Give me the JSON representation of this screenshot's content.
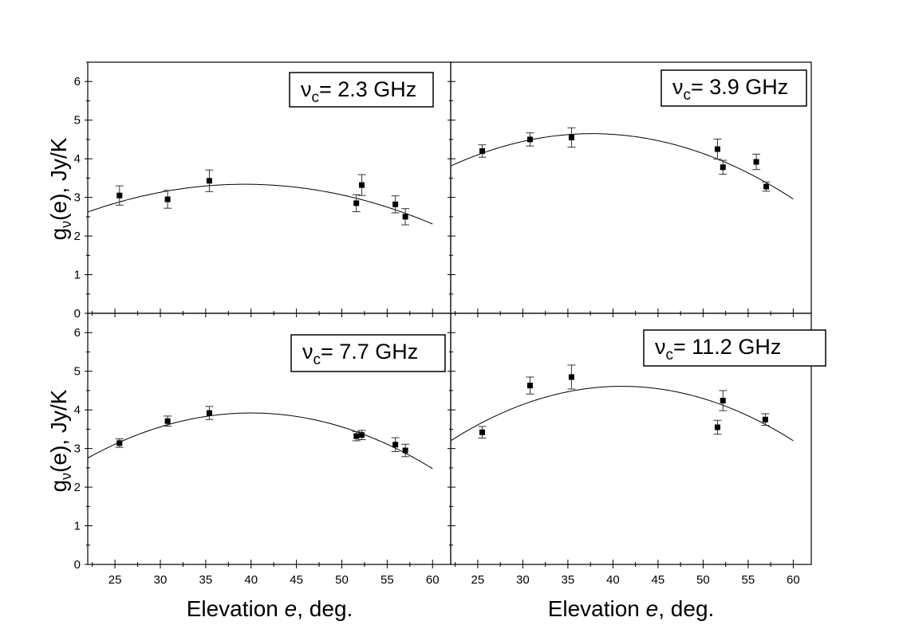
{
  "figure": {
    "ylabel": "gν(e), Jy/K",
    "ylabel_main": "g",
    "ylabel_sub": "ν",
    "ylabel_rest": "(e), Jy/K",
    "xlabel_prefix": "Elevation ",
    "xlabel_var": "e",
    "xlabel_suffix": ", deg."
  },
  "chart_data": [
    {
      "type": "scatter",
      "title": "νc= 2.3 GHz",
      "title_main": "ν",
      "title_sub": "c",
      "title_rest": "= 2.3 GHz",
      "xlabel": "Elevation e, deg.",
      "ylabel": "gν(e), Jy/K",
      "xlim": [
        22,
        62
      ],
      "ylim": [
        0,
        6.5
      ],
      "xticks": [
        25,
        30,
        35,
        40,
        45,
        50,
        55,
        60
      ],
      "yticks": [
        0,
        1,
        2,
        3,
        4,
        5,
        6
      ],
      "points": [
        {
          "x": 25.5,
          "y": 3.05,
          "err": 0.25
        },
        {
          "x": 30.8,
          "y": 2.95,
          "err": 0.23
        },
        {
          "x": 35.4,
          "y": 3.43,
          "err": 0.28
        },
        {
          "x": 51.6,
          "y": 2.85,
          "err": 0.22
        },
        {
          "x": 52.2,
          "y": 3.32,
          "err": 0.27
        },
        {
          "x": 55.9,
          "y": 2.82,
          "err": 0.22
        },
        {
          "x": 57.0,
          "y": 2.5,
          "err": 0.21
        }
      ],
      "fit_curve": {
        "x_vertex": 39.3,
        "y_vertex": 3.34,
        "k": 0.0024,
        "x_range": [
          22,
          60
        ]
      }
    },
    {
      "type": "scatter",
      "title": "νc= 3.9 GHz",
      "title_main": "ν",
      "title_sub": "c",
      "title_rest": "= 3.9 GHz",
      "xlabel": "Elevation e, deg.",
      "ylabel": "gν(e), Jy/K",
      "xlim": [
        22,
        62
      ],
      "ylim": [
        0,
        6.5
      ],
      "xticks": [
        25,
        30,
        35,
        40,
        45,
        50,
        55,
        60
      ],
      "yticks": [
        0,
        1,
        2,
        3,
        4,
        5,
        6
      ],
      "points": [
        {
          "x": 25.5,
          "y": 4.2,
          "err": 0.16
        },
        {
          "x": 30.8,
          "y": 4.5,
          "err": 0.17
        },
        {
          "x": 35.4,
          "y": 4.55,
          "err": 0.25
        },
        {
          "x": 51.6,
          "y": 4.25,
          "err": 0.26
        },
        {
          "x": 52.2,
          "y": 3.78,
          "err": 0.18
        },
        {
          "x": 55.9,
          "y": 3.92,
          "err": 0.2
        },
        {
          "x": 57.0,
          "y": 3.28,
          "err": 0.12
        }
      ],
      "fit_curve": {
        "x_vertex": 37.7,
        "y_vertex": 4.65,
        "k": 0.0034,
        "x_range": [
          22,
          60
        ]
      }
    },
    {
      "type": "scatter",
      "title": "νc= 7.7 GHz",
      "title_main": "ν",
      "title_sub": "c",
      "title_rest": "= 7.7 GHz",
      "xlabel": "Elevation e, deg.",
      "ylabel": "gν(e), Jy/K",
      "xlim": [
        22,
        62
      ],
      "ylim": [
        0,
        6.5
      ],
      "xticks": [
        25,
        30,
        35,
        40,
        45,
        50,
        55,
        60
      ],
      "yticks": [
        0,
        1,
        2,
        3,
        4,
        5,
        6
      ],
      "points": [
        {
          "x": 25.5,
          "y": 3.14,
          "err": 0.11
        },
        {
          "x": 30.8,
          "y": 3.71,
          "err": 0.13
        },
        {
          "x": 35.4,
          "y": 3.92,
          "err": 0.17
        },
        {
          "x": 51.6,
          "y": 3.32,
          "err": 0.12
        },
        {
          "x": 52.2,
          "y": 3.35,
          "err": 0.12
        },
        {
          "x": 55.9,
          "y": 3.1,
          "err": 0.18
        },
        {
          "x": 57.0,
          "y": 2.95,
          "err": 0.16
        }
      ],
      "fit_curve": {
        "x_vertex": 40.0,
        "y_vertex": 3.92,
        "k": 0.0036,
        "x_range": [
          22,
          60
        ]
      }
    },
    {
      "type": "scatter",
      "title": "νc= 11.2 GHz",
      "title_main": "ν",
      "title_sub": "c",
      "title_rest": "= 11.2 GHz",
      "xlabel": "Elevation e, deg.",
      "ylabel": "gν(e), Jy/K",
      "xlim": [
        22,
        62
      ],
      "ylim": [
        0,
        6.5
      ],
      "xticks": [
        25,
        30,
        35,
        40,
        45,
        50,
        55,
        60
      ],
      "yticks": [
        0,
        1,
        2,
        3,
        4,
        5,
        6
      ],
      "points": [
        {
          "x": 25.5,
          "y": 3.42,
          "err": 0.15
        },
        {
          "x": 30.8,
          "y": 4.63,
          "err": 0.22
        },
        {
          "x": 35.4,
          "y": 4.85,
          "err": 0.31
        },
        {
          "x": 51.6,
          "y": 3.55,
          "err": 0.18
        },
        {
          "x": 52.2,
          "y": 4.24,
          "err": 0.26
        },
        {
          "x": 56.9,
          "y": 3.75,
          "err": 0.15
        }
      ],
      "fit_curve": {
        "x_vertex": 41.0,
        "y_vertex": 4.61,
        "k": 0.0039,
        "x_range": [
          22,
          60
        ]
      }
    }
  ]
}
